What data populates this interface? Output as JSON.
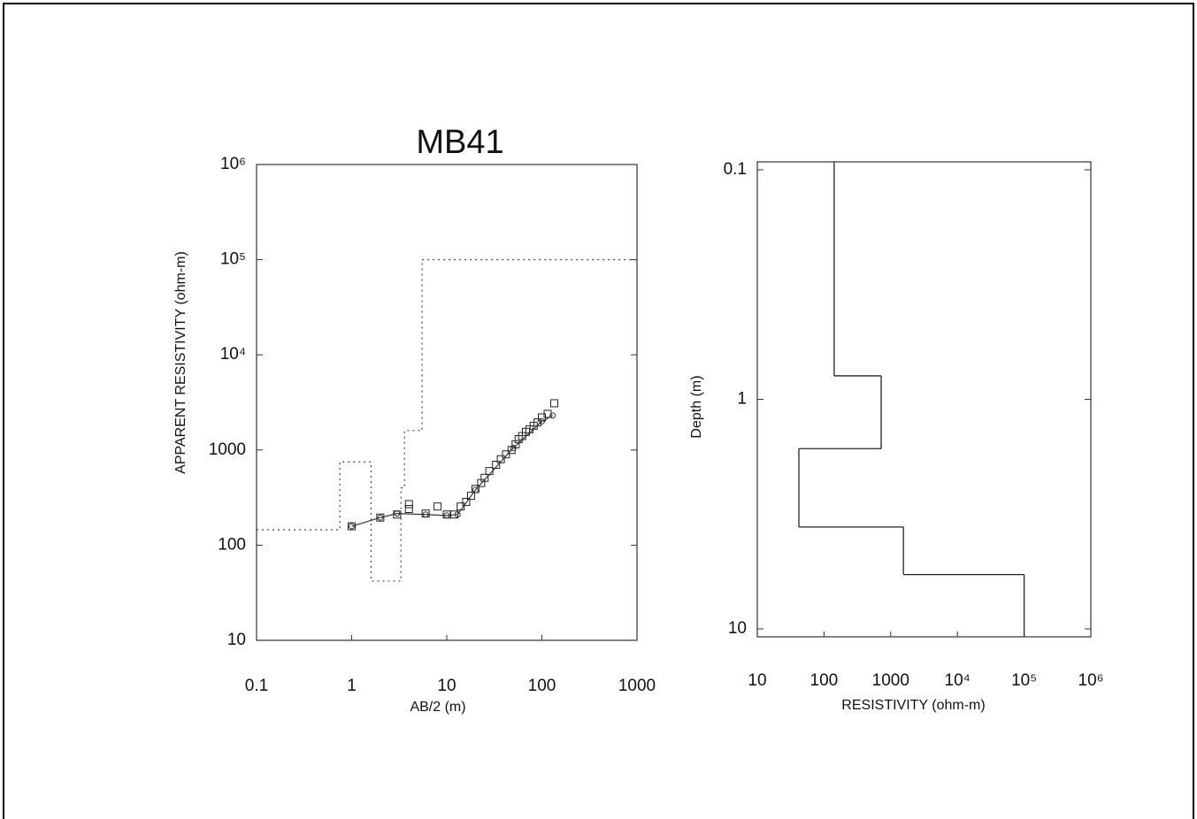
{
  "chart_data": [
    {
      "type": "line",
      "title": "MB41",
      "x_label": "AB/2 (m)",
      "y_label": "APPARENT RESISTIVITY (ohm-m)",
      "xlog": true,
      "ylog": true,
      "xlim": [
        0.1,
        1000
      ],
      "ylim": [
        10,
        1000000
      ],
      "xticks": [
        0.1,
        1,
        10,
        100,
        1000
      ],
      "yticks": [
        10,
        100,
        1000,
        {
          "value": 10000,
          "label": "10⁴"
        },
        {
          "value": 100000,
          "label": "10⁵"
        },
        {
          "value": 1000000,
          "label": "10⁶"
        }
      ],
      "series": [
        {
          "marker": "square",
          "style": "none",
          "color": "#222",
          "x": [
            1,
            2,
            3,
            4,
            4,
            6,
            8,
            10,
            12,
            14,
            16,
            18,
            20,
            23,
            25,
            28,
            33,
            37,
            42,
            48,
            53,
            57,
            62,
            68,
            74,
            82,
            90,
            100,
            115,
            135
          ],
          "values": [
            158,
            195,
            210,
            270,
            240,
            215,
            255,
            210,
            210,
            255,
            285,
            330,
            390,
            450,
            510,
            600,
            700,
            800,
            900,
            1000,
            1150,
            1300,
            1400,
            1550,
            1650,
            1800,
            1950,
            2200,
            2400,
            3100
          ]
        },
        {
          "marker": "circle",
          "style": "solid",
          "color": "#333",
          "x": [
            1,
            2,
            3,
            6,
            10,
            13,
            20,
            50,
            100,
            130
          ],
          "values": [
            158,
            195,
            215,
            210,
            205,
            210,
            380,
            1050,
            2000,
            2300
          ]
        },
        {
          "marker": "none",
          "style": "dotted",
          "color": "#444",
          "x": [
            0.1,
            0.75,
            0.75,
            1.6,
            1.6,
            3.3,
            3.3,
            3.6,
            3.6,
            5.5,
            5.5,
            1000
          ],
          "values": [
            145,
            145,
            750,
            750,
            42,
            42,
            400,
            400,
            1600,
            1600,
            100000,
            100000
          ]
        }
      ]
    },
    {
      "type": "model",
      "x_label": "RESISTIVITY (ohm-m)",
      "y_label": "Depth (m)",
      "xlog": true,
      "ylog": true,
      "y_inverted": true,
      "xlim": [
        10,
        1000000
      ],
      "ylim": [
        0.1,
        10
      ],
      "xticks": [
        10,
        100,
        1000,
        {
          "value": 10000,
          "label": "10⁴"
        },
        {
          "value": 100000,
          "label": "10⁵"
        },
        {
          "value": 1000000,
          "label": "10⁶"
        }
      ],
      "yticks": [
        0.1,
        1,
        10
      ],
      "color": "#222",
      "values": [
        142,
        720,
        42,
        1550,
        100000
      ],
      "boundaries": [
        0.79,
        1.64,
        3.6,
        5.8
      ]
    }
  ]
}
